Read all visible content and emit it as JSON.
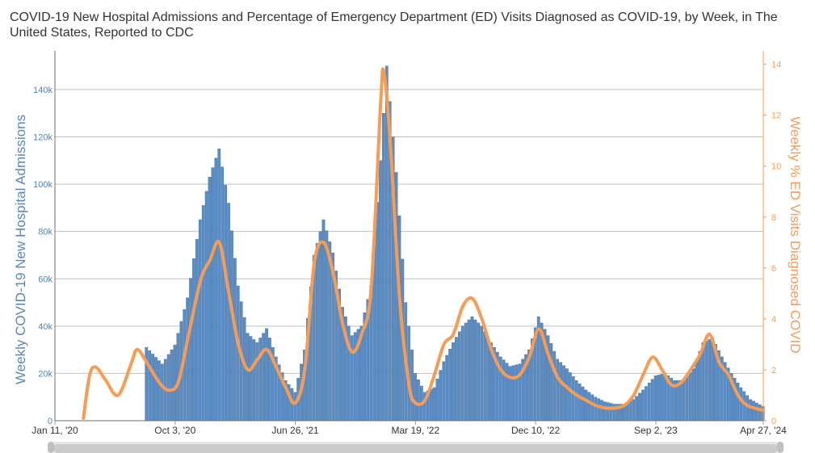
{
  "title": "COVID-19 New Hospital Admissions and Percentage of Emergency Department (ED) Visits Diagnosed as COVID-19, by Week, in The United States, Reported to CDC",
  "colors": {
    "bars": "#5b8dc4",
    "bar_edge": "#3f6fa3",
    "line": "#f79c52",
    "grid": "#c0c0c0"
  },
  "chart_data": {
    "type": "bar",
    "title": "COVID-19 New Hospital Admissions and Percentage of Emergency Department (ED) Visits Diagnosed as COVID-19, by Week, in The United States, Reported to CDC",
    "ylabel": "Weekly COVID-19 New Hospital Admissions",
    "ylabel_right": "Weekly % ED Visits Diagnosed COVID",
    "ylim": [
      0,
      155000
    ],
    "ylim_right": [
      0,
      14.4
    ],
    "xlim": [
      "2020-01-11",
      "2024-04-27"
    ],
    "x_ticks": [
      {
        "date": "2020-01-11",
        "label": "Jan 11, '20"
      },
      {
        "date": "2020-10-03",
        "label": "Oct 3, '20"
      },
      {
        "date": "2021-06-26",
        "label": "Jun 26, '21"
      },
      {
        "date": "2022-03-19",
        "label": "Mar 19, '22"
      },
      {
        "date": "2022-12-10",
        "label": "Dec 10, '22"
      },
      {
        "date": "2023-09-02",
        "label": "Sep 2, '23"
      },
      {
        "date": "2024-04-27",
        "label": "Apr 27, '24"
      }
    ],
    "y_ticks_left": [
      {
        "value": 0,
        "label": "0"
      },
      {
        "value": 20000,
        "label": "20k"
      },
      {
        "value": 40000,
        "label": "40k"
      },
      {
        "value": 60000,
        "label": "60k"
      },
      {
        "value": 80000,
        "label": "80k"
      },
      {
        "value": 100000,
        "label": "100k"
      },
      {
        "value": 120000,
        "label": "120k"
      },
      {
        "value": 140000,
        "label": "140k"
      }
    ],
    "y_ticks_right": [
      {
        "value": 0,
        "label": "0"
      },
      {
        "value": 2,
        "label": "2"
      },
      {
        "value": 4,
        "label": "4"
      },
      {
        "value": 6,
        "label": "6"
      },
      {
        "value": 8,
        "label": "8"
      },
      {
        "value": 10,
        "label": "10"
      },
      {
        "value": 12,
        "label": "12"
      },
      {
        "value": 14,
        "label": "14"
      }
    ],
    "grid": true,
    "series": [
      {
        "name": "Weekly COVID-19 New Hospital Admissions",
        "type": "bar",
        "axis": "left",
        "points": [
          [
            "2020-08-01",
            31000
          ],
          [
            "2020-09-05",
            24000
          ],
          [
            "2020-10-03",
            32000
          ],
          [
            "2020-10-31",
            52000
          ],
          [
            "2020-11-28",
            85000
          ],
          [
            "2020-12-19",
            103000
          ],
          [
            "2021-01-09",
            115000
          ],
          [
            "2021-01-30",
            92000
          ],
          [
            "2021-02-20",
            57000
          ],
          [
            "2021-03-13",
            37000
          ],
          [
            "2021-04-03",
            33000
          ],
          [
            "2021-04-24",
            39000
          ],
          [
            "2021-05-15",
            27000
          ],
          [
            "2021-06-05",
            17000
          ],
          [
            "2021-06-26",
            12000
          ],
          [
            "2021-07-17",
            30000
          ],
          [
            "2021-08-07",
            70000
          ],
          [
            "2021-08-28",
            85000
          ],
          [
            "2021-09-18",
            71000
          ],
          [
            "2021-10-09",
            48000
          ],
          [
            "2021-10-30",
            36000
          ],
          [
            "2021-11-20",
            40000
          ],
          [
            "2021-12-11",
            57000
          ],
          [
            "2022-01-01",
            110000
          ],
          [
            "2022-01-15",
            150000
          ],
          [
            "2022-02-05",
            105000
          ],
          [
            "2022-02-26",
            50000
          ],
          [
            "2022-03-19",
            20000
          ],
          [
            "2022-04-09",
            12000
          ],
          [
            "2022-04-30",
            14000
          ],
          [
            "2022-05-21",
            25000
          ],
          [
            "2022-06-11",
            33000
          ],
          [
            "2022-07-02",
            40000
          ],
          [
            "2022-07-23",
            44000
          ],
          [
            "2022-08-13",
            40000
          ],
          [
            "2022-09-03",
            33000
          ],
          [
            "2022-09-24",
            27000
          ],
          [
            "2022-10-15",
            23000
          ],
          [
            "2022-11-05",
            24000
          ],
          [
            "2022-11-26",
            30000
          ],
          [
            "2022-12-17",
            44000
          ],
          [
            "2023-01-07",
            36000
          ],
          [
            "2023-01-28",
            26000
          ],
          [
            "2023-02-18",
            22000
          ],
          [
            "2023-03-11",
            17000
          ],
          [
            "2023-04-01",
            13000
          ],
          [
            "2023-04-22",
            10000
          ],
          [
            "2023-05-13",
            8000
          ],
          [
            "2023-06-03",
            7000
          ],
          [
            "2023-06-24",
            7000
          ],
          [
            "2023-07-15",
            9000
          ],
          [
            "2023-08-05",
            13000
          ],
          [
            "2023-09-02",
            19000
          ],
          [
            "2023-09-23",
            20000
          ],
          [
            "2023-10-14",
            17000
          ],
          [
            "2023-11-04",
            17000
          ],
          [
            "2023-11-25",
            22000
          ],
          [
            "2023-12-16",
            33000
          ],
          [
            "2024-01-06",
            35000
          ],
          [
            "2024-01-27",
            27000
          ],
          [
            "2024-02-17",
            20000
          ],
          [
            "2024-03-09",
            14000
          ],
          [
            "2024-03-30",
            9000
          ],
          [
            "2024-04-27",
            6000
          ]
        ]
      },
      {
        "name": "Weekly % ED Visits Diagnosed COVID",
        "type": "line",
        "axis": "right",
        "points": [
          [
            "2020-03-14",
            0.1
          ],
          [
            "2020-03-28",
            1.8
          ],
          [
            "2020-04-11",
            2.1
          ],
          [
            "2020-05-02",
            1.6
          ],
          [
            "2020-05-30",
            1.0
          ],
          [
            "2020-06-27",
            2.2
          ],
          [
            "2020-07-11",
            2.8
          ],
          [
            "2020-08-01",
            2.3
          ],
          [
            "2020-08-29",
            1.5
          ],
          [
            "2020-09-19",
            1.2
          ],
          [
            "2020-10-10",
            1.5
          ],
          [
            "2020-10-31",
            3.2
          ],
          [
            "2020-11-28",
            5.5
          ],
          [
            "2020-12-19",
            6.3
          ],
          [
            "2021-01-09",
            7.0
          ],
          [
            "2021-01-30",
            5.0
          ],
          [
            "2021-02-20",
            3.0
          ],
          [
            "2021-03-13",
            2.0
          ],
          [
            "2021-04-03",
            2.4
          ],
          [
            "2021-04-24",
            2.8
          ],
          [
            "2021-05-15",
            2.1
          ],
          [
            "2021-06-05",
            1.3
          ],
          [
            "2021-06-26",
            0.7
          ],
          [
            "2021-07-17",
            2.0
          ],
          [
            "2021-08-07",
            6.2
          ],
          [
            "2021-08-28",
            7.0
          ],
          [
            "2021-09-18",
            5.8
          ],
          [
            "2021-10-09",
            3.8
          ],
          [
            "2021-10-30",
            2.7
          ],
          [
            "2021-11-20",
            3.4
          ],
          [
            "2021-12-11",
            5.2
          ],
          [
            "2022-01-01",
            12.5
          ],
          [
            "2022-01-08",
            13.7
          ],
          [
            "2022-01-22",
            11.0
          ],
          [
            "2022-02-12",
            4.8
          ],
          [
            "2022-03-05",
            1.4
          ],
          [
            "2022-03-19",
            0.7
          ],
          [
            "2022-04-09",
            0.8
          ],
          [
            "2022-04-30",
            1.8
          ],
          [
            "2022-05-21",
            3.0
          ],
          [
            "2022-06-11",
            3.4
          ],
          [
            "2022-07-02",
            4.5
          ],
          [
            "2022-07-23",
            4.8
          ],
          [
            "2022-08-13",
            4.0
          ],
          [
            "2022-09-03",
            2.8
          ],
          [
            "2022-09-24",
            2.0
          ],
          [
            "2022-10-15",
            1.7
          ],
          [
            "2022-11-05",
            1.8
          ],
          [
            "2022-11-26",
            2.5
          ],
          [
            "2022-12-17",
            3.6
          ],
          [
            "2023-01-07",
            2.6
          ],
          [
            "2023-01-28",
            1.7
          ],
          [
            "2023-02-18",
            1.3
          ],
          [
            "2023-03-11",
            1.0
          ],
          [
            "2023-04-01",
            0.8
          ],
          [
            "2023-04-22",
            0.6
          ],
          [
            "2023-05-13",
            0.5
          ],
          [
            "2023-06-03",
            0.5
          ],
          [
            "2023-06-24",
            0.6
          ],
          [
            "2023-07-15",
            1.0
          ],
          [
            "2023-08-05",
            1.8
          ],
          [
            "2023-08-26",
            2.5
          ],
          [
            "2023-09-16",
            2.0
          ],
          [
            "2023-10-07",
            1.4
          ],
          [
            "2023-10-28",
            1.5
          ],
          [
            "2023-11-18",
            2.0
          ],
          [
            "2023-12-09",
            2.6
          ],
          [
            "2023-12-30",
            3.4
          ],
          [
            "2024-01-20",
            2.3
          ],
          [
            "2024-02-10",
            1.8
          ],
          [
            "2024-03-02",
            1.0
          ],
          [
            "2024-03-23",
            0.6
          ],
          [
            "2024-04-27",
            0.4
          ]
        ]
      }
    ]
  }
}
